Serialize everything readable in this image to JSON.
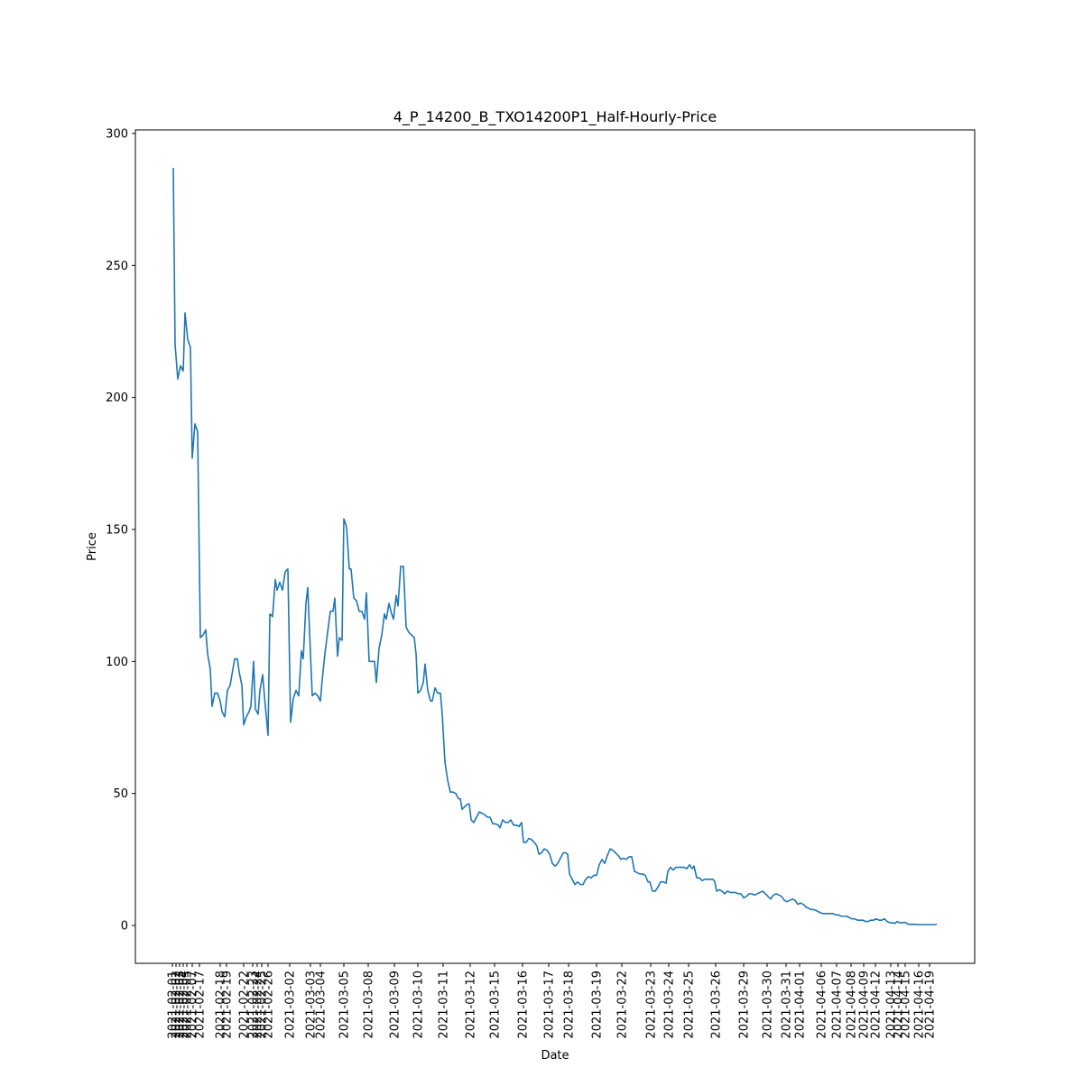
{
  "chart_data": {
    "type": "line",
    "title": "4_P_14200_B_TXO14200P1_Half-Hourly-Price",
    "xlabel": "Date",
    "ylabel": "Price",
    "x": [
      42,
      44,
      47,
      50,
      53,
      55,
      58,
      61,
      63,
      66,
      69,
      72,
      75,
      78,
      80,
      83,
      85,
      88,
      91,
      94,
      96,
      99,
      102,
      105,
      108,
      110,
      113,
      115,
      118,
      120,
      123,
      126,
      128,
      131,
      133,
      136,
      138,
      141,
      144,
      147,
      149,
      152,
      155,
      157,
      160,
      163,
      166,
      169,
      172,
      175,
      178,
      181,
      184,
      186,
      189,
      191,
      194,
      196,
      199,
      202,
      205,
      207,
      210,
      213,
      216,
      219,
      221,
      224,
      226,
      229,
      231,
      234,
      237,
      239,
      242,
      245,
      248,
      251,
      254,
      256,
      259,
      262,
      265,
      267,
      270,
      273,
      276,
      278,
      281,
      284,
      286,
      289,
      291,
      294,
      297,
      300,
      303,
      306,
      309,
      311,
      313,
      316,
      319,
      321,
      324,
      327,
      329,
      332,
      335,
      338,
      340,
      343,
      346,
      349,
      352,
      355,
      358,
      360,
      362,
      365,
      368,
      370,
      372,
      375,
      378,
      381,
      384,
      387,
      390,
      393,
      396,
      399,
      402,
      404,
      407,
      410,
      413,
      416,
      419,
      422,
      425,
      428,
      430,
      433,
      436,
      439,
      442,
      445,
      447,
      450,
      453,
      456,
      459,
      462,
      465,
      468,
      471,
      474,
      477,
      479,
      481,
      484,
      487,
      490,
      493,
      496,
      499,
      502,
      505,
      508,
      511,
      514,
      517,
      520,
      523,
      526,
      529,
      532,
      535,
      538,
      541,
      544,
      547,
      550,
      553,
      556,
      559,
      562,
      565,
      568,
      570,
      573,
      576,
      579,
      582,
      585,
      588,
      590,
      593,
      596,
      599,
      602,
      605,
      608,
      611,
      614,
      617,
      619,
      622,
      625,
      628,
      631,
      634,
      637,
      640,
      642,
      644,
      647,
      650,
      653,
      656,
      659,
      662,
      665,
      668,
      671,
      674,
      677,
      680,
      683,
      686,
      689,
      692,
      695,
      698,
      701,
      704,
      707,
      710,
      713,
      716,
      719,
      722,
      725,
      728,
      731,
      734,
      737,
      740,
      743,
      746,
      749,
      752,
      755,
      758,
      761,
      764,
      767,
      770,
      773,
      776,
      779,
      782,
      785,
      788,
      791,
      794,
      797,
      800,
      803,
      806,
      809,
      812,
      815,
      818,
      821,
      824,
      827,
      830,
      833,
      836,
      839,
      842,
      844,
      847,
      850,
      853,
      856,
      859,
      862,
      865,
      868,
      871,
      874,
      877,
      880,
      883,
      886,
      888
    ],
    "series": [
      {
        "name": "Price",
        "color": "#1f77b4",
        "values": [
          287,
          220,
          207,
          212,
          210,
          232,
          222,
          219,
          177,
          190,
          187,
          109,
          110,
          112,
          103,
          97,
          83,
          88,
          88,
          85,
          81,
          79,
          89,
          91,
          97,
          101,
          101,
          96,
          91,
          76,
          79,
          81,
          83,
          100,
          82,
          80,
          89,
          95,
          83,
          72,
          118,
          117,
          131,
          127,
          130,
          127,
          134,
          135,
          77,
          86,
          89,
          87,
          104,
          101,
          122,
          128,
          103,
          87,
          88,
          87,
          85,
          93,
          103,
          111,
          119,
          119,
          124,
          102,
          109,
          108,
          154,
          151,
          135,
          135,
          124,
          123,
          119,
          119,
          116,
          126,
          100,
          100,
          100,
          92,
          105,
          110,
          118,
          116,
          122,
          118,
          116,
          125,
          121,
          136,
          136,
          113,
          111,
          110,
          109,
          103,
          88,
          89,
          92,
          99,
          89,
          85,
          85,
          90,
          88,
          88,
          80,
          62,
          55,
          50.5,
          50.5,
          50,
          48,
          48,
          44,
          45,
          46,
          46,
          40,
          39,
          41,
          43,
          42.5,
          42,
          41,
          41,
          38.5,
          38.5,
          38,
          37,
          40,
          39,
          39,
          40,
          38,
          38,
          37.5,
          39,
          31.5,
          31.5,
          33,
          32.5,
          31.5,
          30,
          27,
          27.5,
          29,
          28.5,
          27,
          23.5,
          22.5,
          23.5,
          25.5,
          27.5,
          27.5,
          27,
          19.5,
          17.5,
          15.5,
          16.5,
          15.5,
          15.5,
          17.5,
          18.5,
          18,
          19,
          19,
          23,
          25,
          23.5,
          26.5,
          29,
          28.5,
          27.5,
          26.5,
          25,
          25.5,
          25,
          26,
          26,
          20.5,
          20,
          19.5,
          19.5,
          19,
          16.5,
          16.5,
          13,
          13,
          14.5,
          16.5,
          16.5,
          16,
          20.5,
          22,
          21,
          22,
          22,
          22,
          22,
          21.5,
          23,
          21.5,
          22.5,
          18,
          18,
          17,
          17.5,
          17.5,
          17.5,
          17.5,
          16.5,
          13,
          13.5,
          13,
          12,
          13,
          12.5,
          12.5,
          12.5,
          12,
          12,
          10.5,
          11,
          12,
          12,
          11.5,
          12,
          12.5,
          13,
          12,
          11,
          10,
          11.5,
          12,
          11.5,
          11,
          9.5,
          9,
          9.5,
          10,
          9.5,
          8,
          8.5,
          8,
          7,
          6.5,
          6,
          6,
          5.5,
          5,
          4.5,
          4.5,
          4.5,
          4.5,
          4.5,
          4,
          4,
          3.5,
          3.5,
          3.5,
          3,
          2.5,
          2.5,
          2,
          2,
          2,
          1.5,
          1.5,
          2,
          2,
          2.5,
          2,
          2,
          2.5,
          1.5,
          1,
          1,
          0.8,
          1.5,
          1,
          1,
          1.2,
          0.5,
          0.4,
          0.4,
          0.4,
          0.3,
          0.3,
          0.3,
          0.3,
          0.3,
          0.3,
          0.3,
          0.5
        ]
      }
    ],
    "xlim": [
      0,
      930
    ],
    "ylim": [
      -14.35,
      301.35
    ],
    "xticks": [
      {
        "value": 41,
        "label": "2021-02-01"
      },
      {
        "value": 45,
        "label": "2021-02-02"
      },
      {
        "value": 49,
        "label": "2021-02-03"
      },
      {
        "value": 53,
        "label": "2021-02-04"
      },
      {
        "value": 57,
        "label": "2021-02-05"
      },
      {
        "value": 63,
        "label": "2021-02-07"
      },
      {
        "value": 71,
        "label": "2021-02-17"
      },
      {
        "value": 94,
        "label": "2021-02-18"
      },
      {
        "value": 101,
        "label": "2021-02-19"
      },
      {
        "value": 120,
        "label": "2021-02-22"
      },
      {
        "value": 130,
        "label": "2021-02-23"
      },
      {
        "value": 135,
        "label": "2021-02-24"
      },
      {
        "value": 140,
        "label": "2021-02-25"
      },
      {
        "value": 147,
        "label": "2021-02-26"
      },
      {
        "value": 171,
        "label": "2021-03-02"
      },
      {
        "value": 194,
        "label": "2021-03-03"
      },
      {
        "value": 205,
        "label": "2021-03-04"
      },
      {
        "value": 231,
        "label": "2021-03-05"
      },
      {
        "value": 258,
        "label": "2021-03-08"
      },
      {
        "value": 287,
        "label": "2021-03-09"
      },
      {
        "value": 313,
        "label": "2021-03-10"
      },
      {
        "value": 341,
        "label": "2021-03-11"
      },
      {
        "value": 371,
        "label": "2021-03-12"
      },
      {
        "value": 398,
        "label": "2021-03-15"
      },
      {
        "value": 429,
        "label": "2021-03-16"
      },
      {
        "value": 458,
        "label": "2021-03-17"
      },
      {
        "value": 480,
        "label": "2021-03-18"
      },
      {
        "value": 511,
        "label": "2021-03-19"
      },
      {
        "value": 539,
        "label": "2021-03-22"
      },
      {
        "value": 571,
        "label": "2021-03-23"
      },
      {
        "value": 591,
        "label": "2021-03-24"
      },
      {
        "value": 613,
        "label": "2021-03-25"
      },
      {
        "value": 643,
        "label": "2021-03-26"
      },
      {
        "value": 674,
        "label": "2021-03-29"
      },
      {
        "value": 700,
        "label": "2021-03-30"
      },
      {
        "value": 721,
        "label": "2021-03-31"
      },
      {
        "value": 736,
        "label": "2021-04-01"
      },
      {
        "value": 760,
        "label": "2021-04-06"
      },
      {
        "value": 777,
        "label": "2021-04-07"
      },
      {
        "value": 793,
        "label": "2021-04-08"
      },
      {
        "value": 807,
        "label": "2021-04-09"
      },
      {
        "value": 820,
        "label": "2021-04-12"
      },
      {
        "value": 837,
        "label": "2021-04-13"
      },
      {
        "value": 845,
        "label": "2021-04-14"
      },
      {
        "value": 853,
        "label": "2021-04-15"
      },
      {
        "value": 868,
        "label": "2021-04-16"
      },
      {
        "value": 880,
        "label": "2021-04-19"
      }
    ],
    "yticks": [
      0,
      50,
      100,
      150,
      200,
      250,
      300
    ]
  }
}
